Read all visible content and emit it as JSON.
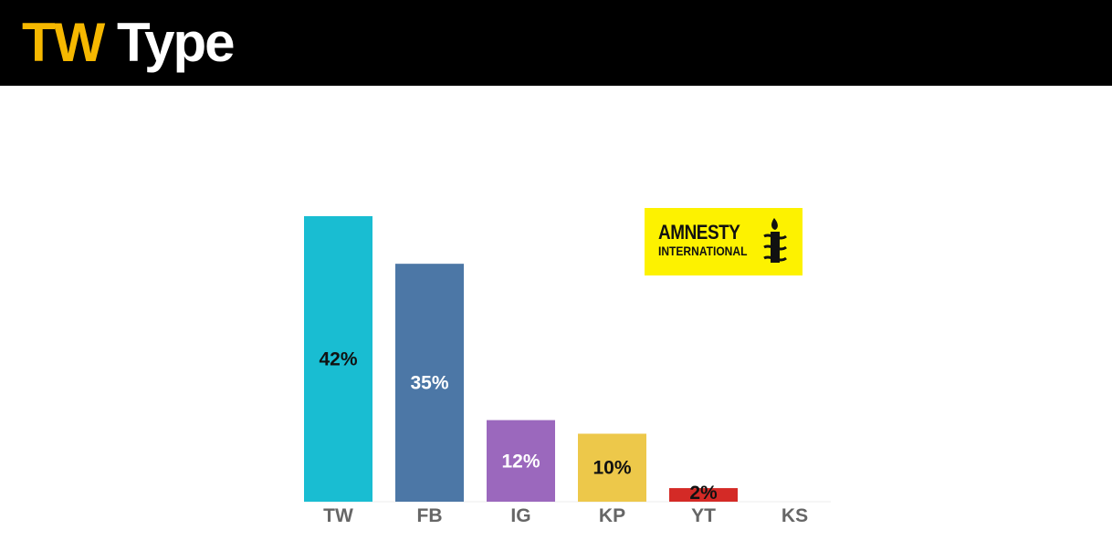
{
  "header": {
    "title_accent": "TW",
    "title_main": "Type"
  },
  "logo": {
    "line1": "AMNESTY",
    "line2": "INTERNATIONAL"
  },
  "colors": {
    "header_bg": "#000000",
    "title_accent": "#f6b800",
    "logo_bg": "#fdf200"
  },
  "chart_data": {
    "type": "bar",
    "title": "",
    "xlabel": "",
    "ylabel": "",
    "ylim": [
      0,
      42
    ],
    "grid": false,
    "categories": [
      "TW",
      "FB",
      "IG",
      "KP",
      "YT",
      "KS"
    ],
    "values": [
      42,
      35,
      12,
      10,
      2,
      0
    ],
    "labels": [
      "42%",
      "35%",
      "12%",
      "10%",
      "2%",
      ""
    ],
    "colors": [
      "#19bdd2",
      "#4c77a6",
      "#9b68bd",
      "#edc84a",
      "#d42a26",
      "#cccccc"
    ],
    "label_colors": [
      "#111111",
      "#ffffff",
      "#ffffff",
      "#111111",
      "#111111",
      "#111111"
    ]
  }
}
